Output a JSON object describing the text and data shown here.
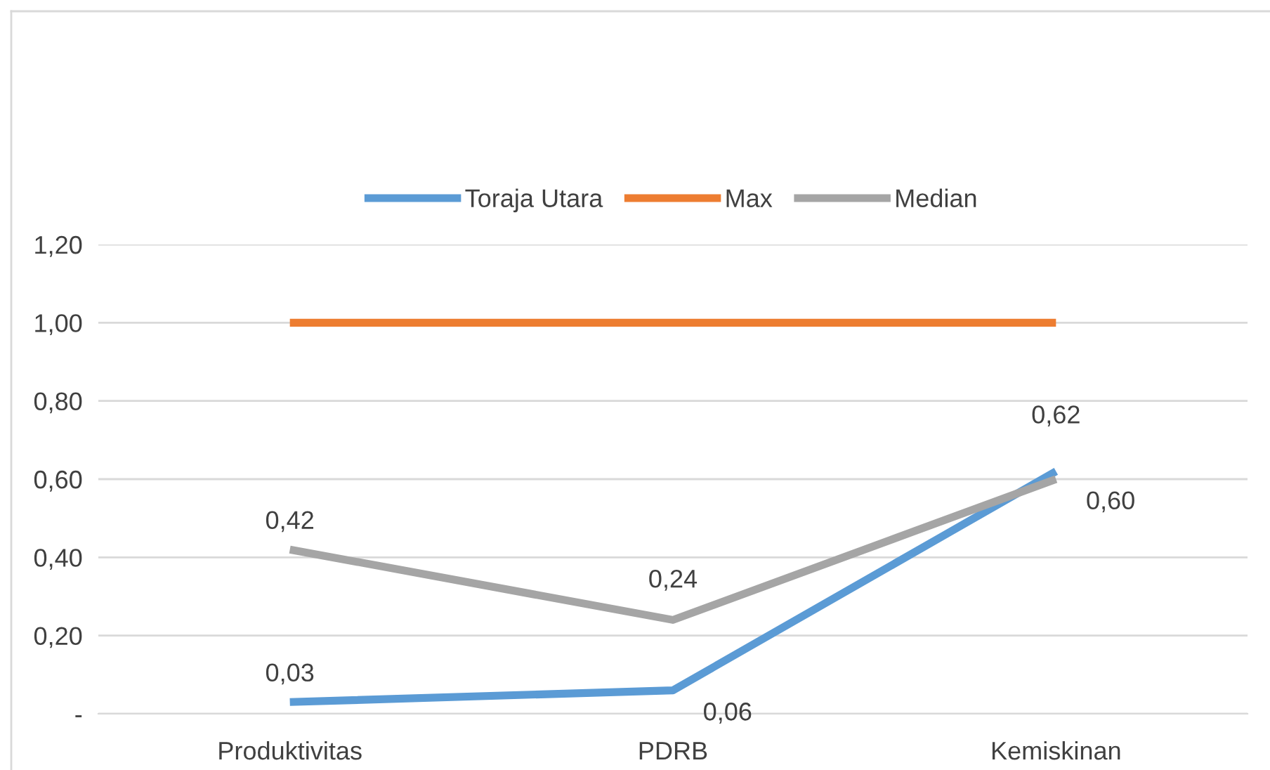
{
  "chart_data": {
    "type": "line",
    "categories": [
      "Produktivitas",
      "PDRB",
      "Kemiskinan"
    ],
    "series": [
      {
        "name": "Toraja Utara",
        "color": "#5b9bd5",
        "values": [
          0.03,
          0.06,
          0.62
        ],
        "value_labels": [
          "0,03",
          "0,06",
          "0,62"
        ]
      },
      {
        "name": "Max",
        "color": "#ed7d31",
        "values": [
          1.0,
          1.0,
          1.0
        ]
      },
      {
        "name": "Median",
        "color": "#a5a5a5",
        "values": [
          0.42,
          0.24,
          0.6
        ],
        "value_labels": [
          "0,42",
          "0,24",
          "0,60"
        ]
      }
    ],
    "ylim": [
      0,
      1.2
    ],
    "yticks": [
      {
        "value": 0,
        "label": "-"
      },
      {
        "value": 0.2,
        "label": "0,20"
      },
      {
        "value": 0.4,
        "label": "0,40"
      },
      {
        "value": 0.6,
        "label": "0,60"
      },
      {
        "value": 0.8,
        "label": "0,80"
      },
      {
        "value": 1.0,
        "label": "1,00"
      },
      {
        "value": 1.2,
        "label": "1,20"
      }
    ],
    "grid": "y",
    "legend": "top",
    "marker": "none",
    "line_style": "solid"
  }
}
